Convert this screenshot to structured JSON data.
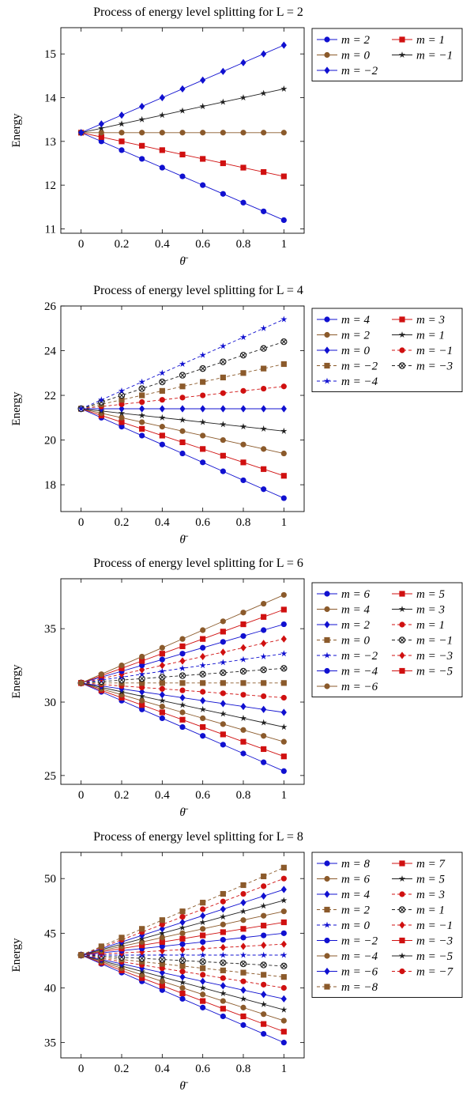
{
  "chart_data": [
    {
      "type": "line",
      "title": "Process of energy level splitting for L = 2",
      "xlabel": "θ̄",
      "ylabel": "Energy",
      "x": [
        0,
        0.1,
        0.2,
        0.3,
        0.4,
        0.5,
        0.6,
        0.7,
        0.8,
        0.9,
        1
      ],
      "xlim": [
        -0.1,
        1.1
      ],
      "ylim": [
        10.9,
        15.6
      ],
      "xticks": [
        "0",
        "0.2",
        "0.4",
        "0.6",
        "0.8",
        "1"
      ],
      "xtick_values": [
        0,
        0.2,
        0.4,
        0.6,
        0.8,
        1
      ],
      "yticks": [
        11,
        12,
        13,
        14,
        15
      ],
      "legend": "right",
      "series": [
        {
          "name": "m = 2",
          "start": 13.2,
          "end": 11.2,
          "color": "#1010d0",
          "marker": "circle",
          "dashed": false
        },
        {
          "name": "m = 1",
          "start": 13.2,
          "end": 12.2,
          "color": "#d01010",
          "marker": "square",
          "dashed": false
        },
        {
          "name": "m = 0",
          "start": 13.2,
          "end": 13.2,
          "color": "#8b5a2b",
          "marker": "circle",
          "dashed": false
        },
        {
          "name": "m = −1",
          "start": 13.2,
          "end": 14.2,
          "color": "#202020",
          "marker": "star",
          "dashed": false
        },
        {
          "name": "m = −2",
          "start": 13.2,
          "end": 15.2,
          "color": "#1010d0",
          "marker": "diamond",
          "dashed": false
        }
      ]
    },
    {
      "type": "line",
      "title": "Process of energy level splitting for L = 4",
      "xlabel": "θ̄",
      "ylabel": "Energy",
      "x": [
        0,
        0.1,
        0.2,
        0.3,
        0.4,
        0.5,
        0.6,
        0.7,
        0.8,
        0.9,
        1
      ],
      "xlim": [
        -0.1,
        1.1
      ],
      "ylim": [
        16.8,
        26.0
      ],
      "xticks": [
        "0",
        "0.2",
        "0.4",
        "0.6",
        "0.8",
        "1"
      ],
      "xtick_values": [
        0,
        0.2,
        0.4,
        0.6,
        0.8,
        1
      ],
      "yticks": [
        18,
        20,
        22,
        24,
        26
      ],
      "legend": "right",
      "series": [
        {
          "name": "m = 4",
          "start": 21.4,
          "end": 17.4,
          "color": "#1010d0",
          "marker": "circle",
          "dashed": false
        },
        {
          "name": "m = 3",
          "start": 21.4,
          "end": 18.4,
          "color": "#d01010",
          "marker": "square",
          "dashed": false
        },
        {
          "name": "m = 2",
          "start": 21.4,
          "end": 19.4,
          "color": "#8b5a2b",
          "marker": "circle",
          "dashed": false
        },
        {
          "name": "m = 1",
          "start": 21.4,
          "end": 20.4,
          "color": "#202020",
          "marker": "star",
          "dashed": false
        },
        {
          "name": "m = 0",
          "start": 21.4,
          "end": 21.4,
          "color": "#1010d0",
          "marker": "diamond",
          "dashed": false
        },
        {
          "name": "m = −1",
          "start": 21.4,
          "end": 22.4,
          "color": "#d01010",
          "marker": "circle",
          "dashed": true
        },
        {
          "name": "m = −2",
          "start": 21.4,
          "end": 23.4,
          "color": "#8b5a2b",
          "marker": "square",
          "dashed": true
        },
        {
          "name": "m = −3",
          "start": 21.4,
          "end": 24.4,
          "color": "#202020",
          "marker": "otimes",
          "dashed": true
        },
        {
          "name": "m = −4",
          "start": 21.4,
          "end": 25.4,
          "color": "#1010d0",
          "marker": "star",
          "dashed": true
        }
      ]
    },
    {
      "type": "line",
      "title": "Process of energy level splitting for L = 6",
      "xlabel": "θ̄",
      "ylabel": "Energy",
      "x": [
        0,
        0.1,
        0.2,
        0.3,
        0.4,
        0.5,
        0.6,
        0.7,
        0.8,
        0.9,
        1
      ],
      "xlim": [
        -0.1,
        1.1
      ],
      "ylim": [
        24.4,
        38.4
      ],
      "xticks": [
        "0",
        "0.2",
        "0.4",
        "0.6",
        "0.8",
        "1"
      ],
      "xtick_values": [
        0,
        0.2,
        0.4,
        0.6,
        0.8,
        1
      ],
      "yticks": [
        25,
        30,
        35
      ],
      "legend": "right",
      "series": [
        {
          "name": "m = 6",
          "start": 31.3,
          "end": 25.3,
          "color": "#1010d0",
          "marker": "circle",
          "dashed": false
        },
        {
          "name": "m = 5",
          "start": 31.3,
          "end": 26.3,
          "color": "#d01010",
          "marker": "square",
          "dashed": false
        },
        {
          "name": "m = 4",
          "start": 31.3,
          "end": 27.3,
          "color": "#8b5a2b",
          "marker": "circle",
          "dashed": false
        },
        {
          "name": "m = 3",
          "start": 31.3,
          "end": 28.3,
          "color": "#202020",
          "marker": "star",
          "dashed": false
        },
        {
          "name": "m = 2",
          "start": 31.3,
          "end": 29.3,
          "color": "#1010d0",
          "marker": "diamond",
          "dashed": false
        },
        {
          "name": "m = 1",
          "start": 31.3,
          "end": 30.3,
          "color": "#d01010",
          "marker": "circle",
          "dashed": true
        },
        {
          "name": "m = 0",
          "start": 31.3,
          "end": 31.3,
          "color": "#8b5a2b",
          "marker": "square",
          "dashed": true
        },
        {
          "name": "m = −1",
          "start": 31.3,
          "end": 32.3,
          "color": "#202020",
          "marker": "otimes",
          "dashed": true
        },
        {
          "name": "m = −2",
          "start": 31.3,
          "end": 33.3,
          "color": "#1010d0",
          "marker": "star",
          "dashed": true
        },
        {
          "name": "m = −3",
          "start": 31.3,
          "end": 34.3,
          "color": "#d01010",
          "marker": "diamond",
          "dashed": true
        },
        {
          "name": "m = −4",
          "start": 31.3,
          "end": 35.3,
          "color": "#1010d0",
          "marker": "circle",
          "dashed": false
        },
        {
          "name": "m = −5",
          "start": 31.3,
          "end": 36.3,
          "color": "#d01010",
          "marker": "square",
          "dashed": false
        },
        {
          "name": "m = −6",
          "start": 31.3,
          "end": 37.3,
          "color": "#8b5a2b",
          "marker": "circle",
          "dashed": false
        }
      ]
    },
    {
      "type": "line",
      "title": "Process of energy level splitting for L = 8",
      "xlabel": "θ̄",
      "ylabel": "Energy",
      "x": [
        0,
        0.1,
        0.2,
        0.3,
        0.4,
        0.5,
        0.6,
        0.7,
        0.8,
        0.9,
        1
      ],
      "xlim": [
        -0.1,
        1.1
      ],
      "ylim": [
        33.6,
        52.4
      ],
      "xticks": [
        "0",
        "0.2",
        "0.4",
        "0.6",
        "0.8",
        "1"
      ],
      "xtick_values": [
        0,
        0.2,
        0.4,
        0.6,
        0.8,
        1
      ],
      "yticks": [
        35,
        40,
        45,
        50
      ],
      "legend": "right",
      "series": [
        {
          "name": "m = 8",
          "start": 43,
          "end": 35,
          "color": "#1010d0",
          "marker": "circle",
          "dashed": false
        },
        {
          "name": "m = 7",
          "start": 43,
          "end": 36,
          "color": "#d01010",
          "marker": "square",
          "dashed": false
        },
        {
          "name": "m = 6",
          "start": 43,
          "end": 37,
          "color": "#8b5a2b",
          "marker": "circle",
          "dashed": false
        },
        {
          "name": "m = 5",
          "start": 43,
          "end": 38,
          "color": "#202020",
          "marker": "star",
          "dashed": false
        },
        {
          "name": "m = 4",
          "start": 43,
          "end": 39,
          "color": "#1010d0",
          "marker": "diamond",
          "dashed": false
        },
        {
          "name": "m = 3",
          "start": 43,
          "end": 40,
          "color": "#d01010",
          "marker": "circle",
          "dashed": true
        },
        {
          "name": "m = 2",
          "start": 43,
          "end": 41,
          "color": "#8b5a2b",
          "marker": "square",
          "dashed": true
        },
        {
          "name": "m = 1",
          "start": 43,
          "end": 42,
          "color": "#202020",
          "marker": "otimes",
          "dashed": true
        },
        {
          "name": "m = 0",
          "start": 43,
          "end": 43,
          "color": "#1010d0",
          "marker": "star",
          "dashed": true
        },
        {
          "name": "m = −1",
          "start": 43,
          "end": 44,
          "color": "#d01010",
          "marker": "diamond",
          "dashed": true
        },
        {
          "name": "m = −2",
          "start": 43,
          "end": 45,
          "color": "#1010d0",
          "marker": "circle",
          "dashed": false
        },
        {
          "name": "m = −3",
          "start": 43,
          "end": 46,
          "color": "#d01010",
          "marker": "square",
          "dashed": false
        },
        {
          "name": "m = −4",
          "start": 43,
          "end": 47,
          "color": "#8b5a2b",
          "marker": "circle",
          "dashed": false
        },
        {
          "name": "m = −5",
          "start": 43,
          "end": 48,
          "color": "#202020",
          "marker": "star",
          "dashed": false
        },
        {
          "name": "m = −6",
          "start": 43,
          "end": 49,
          "color": "#1010d0",
          "marker": "diamond",
          "dashed": false
        },
        {
          "name": "m = −7",
          "start": 43,
          "end": 50,
          "color": "#d01010",
          "marker": "circle",
          "dashed": true
        },
        {
          "name": "m = −8",
          "start": 43,
          "end": 51,
          "color": "#8b5a2b",
          "marker": "square",
          "dashed": true
        }
      ]
    }
  ]
}
